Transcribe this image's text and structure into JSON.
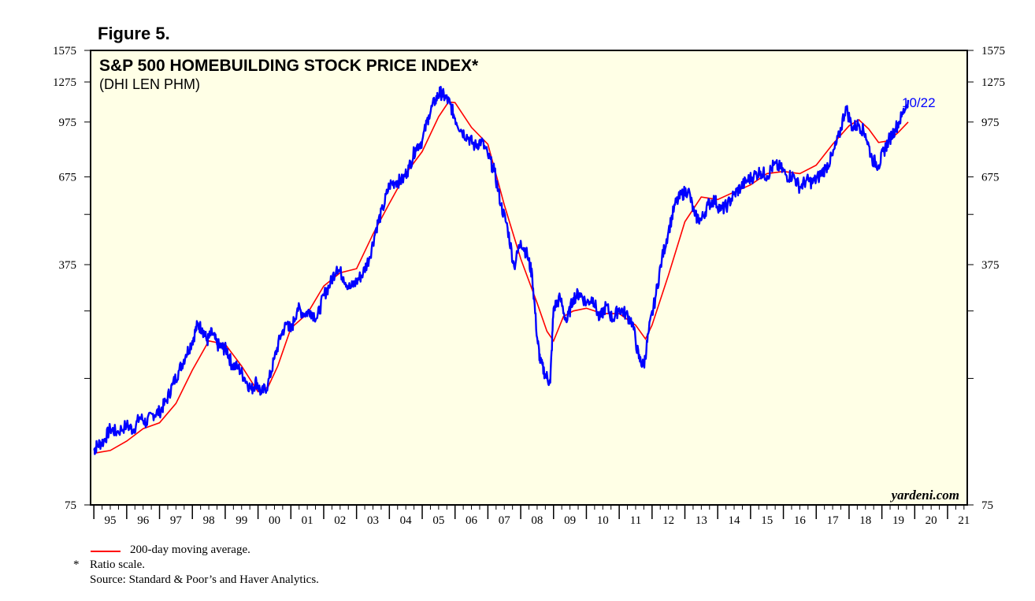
{
  "figure_label": "Figure 5.",
  "colors": {
    "plot_background": "#ffffe6",
    "index_line": "#0000ff",
    "moving_average_line": "#ff0000",
    "last_label": "#0000ff"
  },
  "chart_data": {
    "type": "line",
    "title": "S&P 500 HOMEBUILDING STOCK PRICE INDEX*",
    "subtitle": "(DHI LEN PHM)",
    "watermark": "yardeni.com",
    "last_point_label": "10/22",
    "y_scale": "log",
    "ylim": [
      75,
      1575
    ],
    "y_ticks": [
      "1575",
      "1275",
      "975",
      "675",
      "375",
      "75"
    ],
    "y_minor_ticks": [
      1575,
      1275,
      975,
      675,
      525,
      375,
      275,
      175,
      75
    ],
    "x_range_years": [
      1994.9,
      2021.6
    ],
    "x_tick_labels": [
      "95",
      "96",
      "97",
      "98",
      "99",
      "00",
      "01",
      "02",
      "03",
      "04",
      "05",
      "06",
      "07",
      "08",
      "09",
      "10",
      "11",
      "12",
      "13",
      "14",
      "15",
      "16",
      "17",
      "18",
      "19",
      "20",
      "21"
    ],
    "grid": false,
    "series": [
      {
        "name": "",
        "role": "index",
        "x": [
          1995.0,
          1995.1,
          1995.3,
          1995.5,
          1995.7,
          1996.0,
          1996.2,
          1996.4,
          1996.6,
          1996.8,
          1997.0,
          1997.2,
          1997.4,
          1997.6,
          1997.8,
          1998.0,
          1998.15,
          1998.3,
          1998.45,
          1998.6,
          1998.75,
          1998.9,
          1999.05,
          1999.2,
          1999.4,
          1999.6,
          1999.8,
          1999.95,
          2000.1,
          2000.3,
          2000.5,
          2000.7,
          2000.9,
          2001.0,
          2001.2,
          2001.4,
          2001.6,
          2001.8,
          2002.0,
          2002.2,
          2002.4,
          2002.6,
          2002.8,
          2003.0,
          2003.2,
          2003.4,
          2003.6,
          2003.8,
          2004.0,
          2004.2,
          2004.4,
          2004.6,
          2004.8,
          2005.0,
          2005.2,
          2005.4,
          2005.55,
          2005.7,
          2005.85,
          2006.0,
          2006.2,
          2006.4,
          2006.6,
          2006.8,
          2007.0,
          2007.2,
          2007.4,
          2007.6,
          2007.8,
          2008.0,
          2008.2,
          2008.35,
          2008.5,
          2008.6,
          2008.75,
          2008.9,
          2009.0,
          2009.2,
          2009.4,
          2009.6,
          2009.8,
          2010.0,
          2010.2,
          2010.4,
          2010.6,
          2010.8,
          2011.0,
          2011.2,
          2011.4,
          2011.6,
          2011.75,
          2011.9,
          2012.1,
          2012.3,
          2012.5,
          2012.7,
          2012.9,
          2013.1,
          2013.3,
          2013.5,
          2013.7,
          2013.9,
          2014.1,
          2014.3,
          2014.5,
          2014.7,
          2014.9,
          2015.1,
          2015.3,
          2015.5,
          2015.7,
          2015.9,
          2016.1,
          2016.3,
          2016.5,
          2016.7,
          2016.9,
          2017.1,
          2017.3,
          2017.5,
          2017.7,
          2017.9,
          2018.1,
          2018.3,
          2018.5,
          2018.7,
          2018.9,
          2019.05,
          2019.2,
          2019.4,
          2019.6,
          2019.8
        ],
        "values": [
          108,
          112,
          115,
          125,
          122,
          128,
          124,
          135,
          130,
          138,
          140,
          150,
          168,
          185,
          205,
          225,
          250,
          245,
          225,
          238,
          220,
          215,
          212,
          192,
          188,
          175,
          162,
          172,
          158,
          168,
          200,
          235,
          255,
          240,
          280,
          270,
          275,
          262,
          305,
          330,
          370,
          345,
          320,
          335,
          355,
          395,
          480,
          545,
          640,
          655,
          660,
          720,
          820,
          860,
          1020,
          1130,
          1190,
          1150,
          1100,
          1000,
          920,
          880,
          830,
          860,
          780,
          700,
          560,
          480,
          370,
          440,
          400,
          350,
          230,
          195,
          180,
          170,
          280,
          300,
          255,
          300,
          310,
          290,
          300,
          260,
          285,
          260,
          280,
          270,
          255,
          200,
          190,
          240,
          300,
          390,
          470,
          560,
          600,
          620,
          520,
          505,
          560,
          580,
          540,
          560,
          600,
          630,
          660,
          680,
          700,
          680,
          730,
          720,
          680,
          680,
          630,
          660,
          650,
          680,
          720,
          780,
          890,
          1080,
          940,
          960,
          900,
          760,
          730,
          800,
          860,
          930,
          1010,
          1130
        ]
      },
      {
        "name": "200-day moving average.",
        "role": "moving_average",
        "x": [
          1995.0,
          1995.5,
          1996.0,
          1996.5,
          1997.0,
          1997.5,
          1998.0,
          1998.5,
          1999.0,
          1999.5,
          2000.0,
          2000.3,
          2000.6,
          2001.0,
          2001.5,
          2002.0,
          2002.5,
          2003.0,
          2003.5,
          2004.0,
          2004.5,
          2005.0,
          2005.5,
          2005.8,
          2006.0,
          2006.5,
          2007.0,
          2007.5,
          2008.0,
          2008.5,
          2008.8,
          2009.0,
          2009.3,
          2009.6,
          2010.0,
          2010.5,
          2011.0,
          2011.5,
          2011.8,
          2012.0,
          2012.5,
          2013.0,
          2013.5,
          2014.0,
          2014.5,
          2015.0,
          2015.5,
          2016.0,
          2016.5,
          2017.0,
          2017.5,
          2018.0,
          2018.3,
          2018.6,
          2018.9,
          2019.2,
          2019.5,
          2019.8
        ],
        "values": [
          106,
          108,
          115,
          125,
          130,
          148,
          185,
          225,
          220,
          190,
          160,
          165,
          190,
          245,
          270,
          325,
          355,
          365,
          460,
          565,
          690,
          800,
          1010,
          1115,
          1110,
          940,
          840,
          560,
          390,
          290,
          240,
          225,
          265,
          275,
          280,
          270,
          270,
          250,
          228,
          250,
          350,
          500,
          590,
          580,
          610,
          640,
          690,
          700,
          690,
          730,
          840,
          950,
          990,
          930,
          850,
          860,
          910,
          975
        ]
      }
    ],
    "legend": {
      "placement": "bottom-left",
      "entries": [
        "200-day moving average."
      ]
    }
  },
  "notes": {
    "star": "*",
    "ratio": "Ratio scale.",
    "source": "Source: Standard & Poor’s and Haver Analytics."
  }
}
